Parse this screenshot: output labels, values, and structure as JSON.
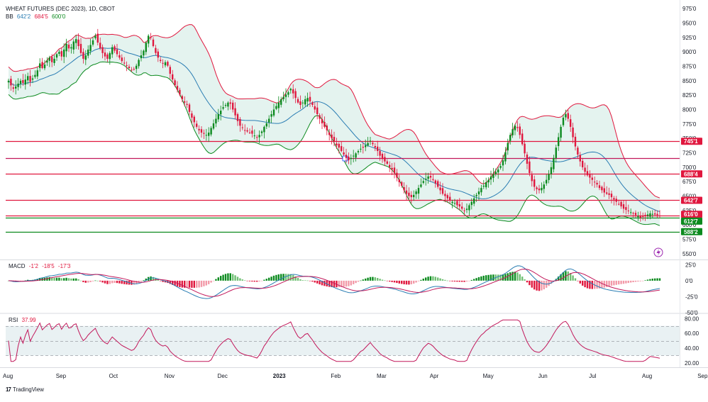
{
  "chart_data": {
    "type": "candlestick",
    "title": "WHEAT FUTURES (DEC 2023), 1D, CBOT",
    "price_axis": {
      "ticks": [
        "975'0",
        "950'0",
        "925'0",
        "900'0",
        "875'0",
        "850'0",
        "825'0",
        "800'0",
        "775'0",
        "750'0",
        "725'0",
        "700'0",
        "675'0",
        "650'0",
        "625'0",
        "600'0",
        "575'0",
        "550'0"
      ],
      "tick_values": [
        975,
        950,
        925,
        900,
        875,
        850,
        825,
        800,
        775,
        750,
        725,
        700,
        675,
        650,
        625,
        600,
        575,
        550
      ],
      "range": [
        540,
        985
      ]
    },
    "time_axis": {
      "labels": [
        "Aug",
        "Sep",
        "Oct",
        "Nov",
        "Dec",
        "2023",
        "Feb",
        "Mar",
        "Apr",
        "May",
        "Jun",
        "Jul",
        "Aug",
        "Sep"
      ],
      "label_x_index": [
        0,
        22,
        44,
        67,
        89,
        112,
        136,
        155,
        177,
        199,
        222,
        243,
        265,
        288
      ]
    },
    "bollinger_legend": {
      "name": "BB",
      "values": [
        "642'2",
        "684'5",
        "600'0"
      ]
    },
    "horizontal_levels": [
      {
        "value": 745.1,
        "label": "745'1",
        "color": "#e0173e"
      },
      {
        "value": 688.4,
        "label": "688'4",
        "color": "#e0173e"
      },
      {
        "value": 642.7,
        "label": "642'7",
        "color": "#e0173e"
      },
      {
        "value": 616.0,
        "label": "616'0",
        "color": "#e0173e"
      },
      {
        "value": 612.7,
        "label": "612'7",
        "color": "#0b8a1e"
      },
      {
        "value": 588.2,
        "label": "588'2",
        "color": "#0b8a1e"
      }
    ],
    "extra_line": {
      "value": 716,
      "color": "#c2185b"
    },
    "macd": {
      "name": "MACD",
      "values": [
        "-1'2",
        "-18'5",
        "-17'3"
      ],
      "axis_ticks": [
        "25'0",
        "0'0",
        "-25'0",
        "-50'0"
      ],
      "tick_values": [
        25,
        0,
        -25,
        -50
      ],
      "range": [
        -50,
        32
      ]
    },
    "rsi": {
      "name": "RSI",
      "value": "37.99",
      "axis_ticks": [
        "80.00",
        "60.00",
        "40.00",
        "20.00"
      ],
      "tick_values": [
        80,
        60,
        40,
        20
      ],
      "range": [
        14,
        86
      ],
      "band": [
        30,
        70
      ]
    },
    "closes": [
      850,
      842,
      836,
      840,
      845,
      850,
      846,
      852,
      858,
      848,
      854,
      860,
      868,
      880,
      872,
      878,
      885,
      890,
      882,
      888,
      896,
      900,
      892,
      904,
      914,
      906,
      908,
      918,
      922,
      910,
      898,
      888,
      894,
      904,
      912,
      920,
      928,
      916,
      906,
      898,
      892,
      888,
      898,
      908,
      902,
      896,
      890,
      884,
      880,
      876,
      872,
      868,
      870,
      876,
      886,
      894,
      902,
      916,
      928,
      924,
      910,
      898,
      890,
      884,
      880,
      882,
      876,
      862,
      852,
      842,
      834,
      826,
      818,
      812,
      808,
      796,
      786,
      778,
      770,
      764,
      760,
      758,
      756,
      760,
      768,
      776,
      784,
      792,
      798,
      804,
      808,
      812,
      810,
      800,
      790,
      780,
      772,
      768,
      764,
      762,
      760,
      758,
      755,
      752,
      756,
      762,
      770,
      776,
      784,
      792,
      800,
      806,
      812,
      818,
      822,
      826,
      830,
      836,
      828,
      820,
      812,
      808,
      812,
      818,
      820,
      814,
      808,
      800,
      792,
      784,
      776,
      770,
      764,
      756,
      750,
      744,
      738,
      734,
      728,
      722,
      716,
      712,
      716,
      720,
      724,
      728,
      732,
      734,
      738,
      742,
      746,
      740,
      734,
      728,
      720,
      714,
      710,
      706,
      700,
      696,
      690,
      682,
      674,
      668,
      660,
      654,
      650,
      648,
      652,
      658,
      664,
      670,
      676,
      680,
      684,
      682,
      678,
      672,
      666,
      660,
      654,
      650,
      646,
      642,
      640,
      638,
      634,
      632,
      628,
      625,
      628,
      634,
      640,
      646,
      652,
      658,
      664,
      668,
      674,
      678,
      684,
      688,
      692,
      696,
      702,
      712,
      726,
      742,
      756,
      766,
      772,
      768,
      756,
      740,
      724,
      706,
      690,
      676,
      666,
      662,
      660,
      664,
      670,
      678,
      688,
      700,
      716,
      734,
      752,
      770,
      786,
      792,
      784,
      770,
      752,
      736,
      722,
      710,
      700,
      692,
      686,
      682,
      678,
      674,
      670,
      664,
      660,
      656,
      654,
      652,
      648,
      644,
      640,
      636,
      632,
      628,
      626,
      624,
      622,
      620,
      617,
      615,
      612,
      614,
      616,
      618,
      620,
      619,
      618,
      617,
      616
    ]
  },
  "footer": {
    "brand": "TradingView"
  }
}
